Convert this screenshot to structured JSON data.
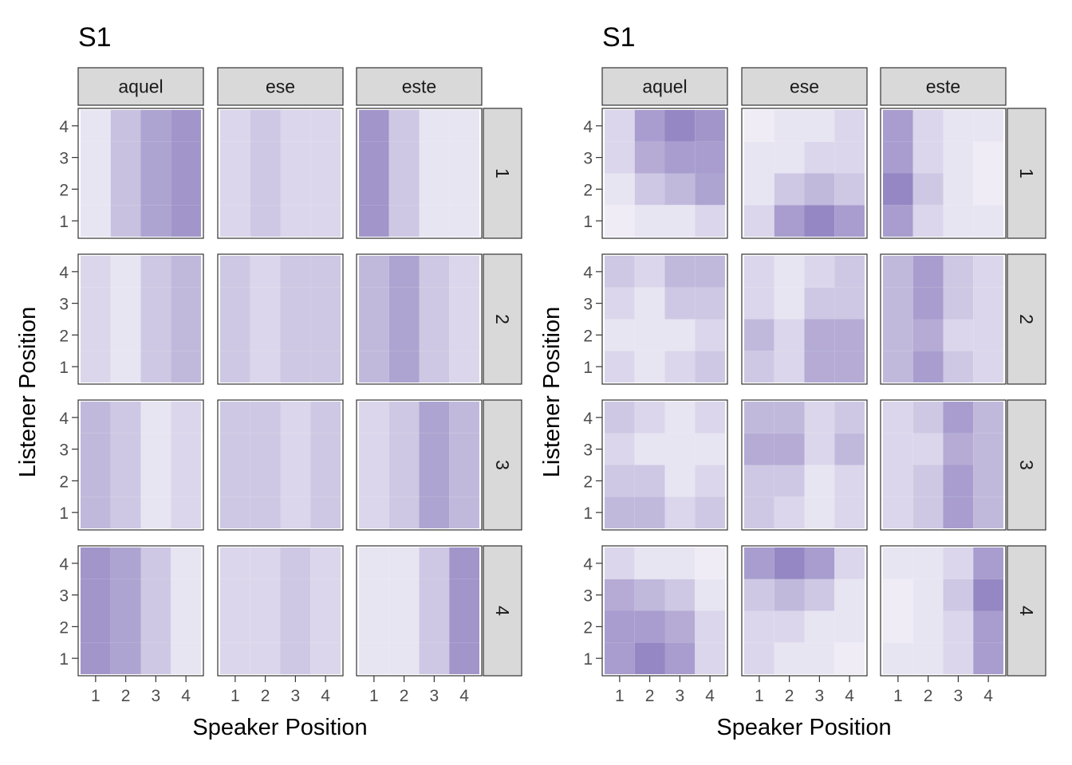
{
  "chart_data": [
    {
      "type": "heatmap",
      "title": "S1",
      "xlabel": "Speaker Position",
      "ylabel": "Listener Position",
      "x": [
        1,
        2,
        3,
        4
      ],
      "y": [
        1,
        2,
        3,
        4
      ],
      "facet_cols": [
        "aquel",
        "ese",
        "este"
      ],
      "facet_rows": [
        "1",
        "2",
        "3",
        "4"
      ],
      "color_low": "#f5f3fa",
      "color_high": "#7463b0",
      "value_range": [
        0,
        1
      ],
      "values_note": "intensity 0-1",
      "panels": {
        "1": {
          "aquel": [
            [
              0.1,
              0.35,
              0.55,
              0.65
            ],
            [
              0.1,
              0.35,
              0.55,
              0.65
            ],
            [
              0.1,
              0.35,
              0.55,
              0.65
            ],
            [
              0.1,
              0.35,
              0.55,
              0.65
            ]
          ],
          "ese": [
            [
              0.2,
              0.3,
              0.2,
              0.2
            ],
            [
              0.2,
              0.3,
              0.2,
              0.2
            ],
            [
              0.2,
              0.3,
              0.2,
              0.2
            ],
            [
              0.2,
              0.3,
              0.2,
              0.2
            ]
          ],
          "este": [
            [
              0.65,
              0.3,
              0.1,
              0.1
            ],
            [
              0.65,
              0.3,
              0.1,
              0.1
            ],
            [
              0.65,
              0.3,
              0.1,
              0.1
            ],
            [
              0.65,
              0.3,
              0.1,
              0.1
            ]
          ]
        },
        "2": {
          "aquel": [
            [
              0.2,
              0.1,
              0.3,
              0.4
            ],
            [
              0.2,
              0.1,
              0.3,
              0.4
            ],
            [
              0.2,
              0.1,
              0.3,
              0.4
            ],
            [
              0.2,
              0.1,
              0.3,
              0.4
            ]
          ],
          "ese": [
            [
              0.3,
              0.2,
              0.3,
              0.3
            ],
            [
              0.3,
              0.2,
              0.3,
              0.3
            ],
            [
              0.3,
              0.2,
              0.3,
              0.3
            ],
            [
              0.3,
              0.2,
              0.3,
              0.3
            ]
          ],
          "este": [
            [
              0.4,
              0.55,
              0.3,
              0.2
            ],
            [
              0.4,
              0.55,
              0.3,
              0.2
            ],
            [
              0.4,
              0.55,
              0.3,
              0.2
            ],
            [
              0.4,
              0.55,
              0.3,
              0.2
            ]
          ]
        },
        "3": {
          "aquel": [
            [
              0.4,
              0.3,
              0.1,
              0.2
            ],
            [
              0.4,
              0.3,
              0.1,
              0.2
            ],
            [
              0.4,
              0.3,
              0.1,
              0.2
            ],
            [
              0.4,
              0.3,
              0.1,
              0.2
            ]
          ],
          "ese": [
            [
              0.3,
              0.3,
              0.2,
              0.3
            ],
            [
              0.3,
              0.3,
              0.2,
              0.3
            ],
            [
              0.3,
              0.3,
              0.2,
              0.3
            ],
            [
              0.3,
              0.3,
              0.2,
              0.3
            ]
          ],
          "este": [
            [
              0.2,
              0.3,
              0.55,
              0.4
            ],
            [
              0.2,
              0.3,
              0.55,
              0.4
            ],
            [
              0.2,
              0.3,
              0.55,
              0.4
            ],
            [
              0.2,
              0.3,
              0.55,
              0.4
            ]
          ]
        },
        "4": {
          "aquel": [
            [
              0.65,
              0.55,
              0.3,
              0.1
            ],
            [
              0.65,
              0.55,
              0.3,
              0.1
            ],
            [
              0.65,
              0.55,
              0.3,
              0.1
            ],
            [
              0.65,
              0.55,
              0.3,
              0.1
            ]
          ],
          "ese": [
            [
              0.2,
              0.2,
              0.3,
              0.2
            ],
            [
              0.2,
              0.2,
              0.3,
              0.2
            ],
            [
              0.2,
              0.2,
              0.3,
              0.2
            ],
            [
              0.2,
              0.2,
              0.3,
              0.2
            ]
          ],
          "este": [
            [
              0.1,
              0.1,
              0.3,
              0.65
            ],
            [
              0.1,
              0.1,
              0.3,
              0.65
            ],
            [
              0.1,
              0.1,
              0.3,
              0.65
            ],
            [
              0.1,
              0.1,
              0.3,
              0.65
            ]
          ]
        }
      }
    },
    {
      "type": "heatmap",
      "title": "S1",
      "xlabel": "Speaker Position",
      "ylabel": "Listener Position",
      "x": [
        1,
        2,
        3,
        4
      ],
      "y": [
        1,
        2,
        3,
        4
      ],
      "facet_cols": [
        "aquel",
        "ese",
        "este"
      ],
      "facet_rows": [
        "1",
        "2",
        "3",
        "4"
      ],
      "color_low": "#f5f3fa",
      "color_high": "#7463b0",
      "value_range": [
        0,
        1
      ],
      "values_note": "intensity 0-1",
      "panels": {
        "1": {
          "aquel": [
            [
              0.05,
              0.1,
              0.1,
              0.2
            ],
            [
              0.1,
              0.3,
              0.4,
              0.55
            ],
            [
              0.2,
              0.5,
              0.6,
              0.6
            ],
            [
              0.2,
              0.6,
              0.75,
              0.65
            ]
          ],
          "ese": [
            [
              0.2,
              0.6,
              0.75,
              0.6
            ],
            [
              0.1,
              0.3,
              0.4,
              0.3
            ],
            [
              0.1,
              0.1,
              0.2,
              0.2
            ],
            [
              0.05,
              0.1,
              0.1,
              0.2
            ]
          ],
          "este": [
            [
              0.6,
              0.2,
              0.1,
              0.1
            ],
            [
              0.75,
              0.3,
              0.1,
              0.05
            ],
            [
              0.6,
              0.2,
              0.1,
              0.05
            ],
            [
              0.6,
              0.2,
              0.1,
              0.1
            ]
          ]
        },
        "2": {
          "aquel": [
            [
              0.2,
              0.1,
              0.2,
              0.3
            ],
            [
              0.1,
              0.1,
              0.1,
              0.2
            ],
            [
              0.2,
              0.1,
              0.3,
              0.3
            ],
            [
              0.3,
              0.2,
              0.4,
              0.4
            ]
          ],
          "ese": [
            [
              0.3,
              0.2,
              0.5,
              0.5
            ],
            [
              0.4,
              0.2,
              0.5,
              0.5
            ],
            [
              0.2,
              0.1,
              0.3,
              0.3
            ],
            [
              0.2,
              0.1,
              0.2,
              0.3
            ]
          ],
          "este": [
            [
              0.4,
              0.6,
              0.3,
              0.2
            ],
            [
              0.4,
              0.5,
              0.2,
              0.2
            ],
            [
              0.4,
              0.6,
              0.3,
              0.2
            ],
            [
              0.4,
              0.6,
              0.3,
              0.2
            ]
          ]
        },
        "3": {
          "aquel": [
            [
              0.4,
              0.4,
              0.2,
              0.3
            ],
            [
              0.3,
              0.3,
              0.1,
              0.2
            ],
            [
              0.2,
              0.1,
              0.1,
              0.1
            ],
            [
              0.3,
              0.2,
              0.1,
              0.2
            ]
          ],
          "ese": [
            [
              0.3,
              0.2,
              0.1,
              0.2
            ],
            [
              0.3,
              0.3,
              0.1,
              0.2
            ],
            [
              0.5,
              0.5,
              0.2,
              0.4
            ],
            [
              0.4,
              0.4,
              0.2,
              0.3
            ]
          ],
          "este": [
            [
              0.2,
              0.3,
              0.6,
              0.4
            ],
            [
              0.2,
              0.3,
              0.6,
              0.4
            ],
            [
              0.2,
              0.2,
              0.5,
              0.4
            ],
            [
              0.2,
              0.3,
              0.6,
              0.4
            ]
          ]
        },
        "4": {
          "aquel": [
            [
              0.6,
              0.75,
              0.6,
              0.2
            ],
            [
              0.6,
              0.6,
              0.5,
              0.2
            ],
            [
              0.5,
              0.4,
              0.3,
              0.1
            ],
            [
              0.2,
              0.1,
              0.1,
              0.05
            ]
          ],
          "ese": [
            [
              0.2,
              0.1,
              0.1,
              0.05
            ],
            [
              0.2,
              0.2,
              0.1,
              0.1
            ],
            [
              0.3,
              0.4,
              0.3,
              0.1
            ],
            [
              0.6,
              0.75,
              0.6,
              0.2
            ]
          ],
          "este": [
            [
              0.1,
              0.1,
              0.2,
              0.6
            ],
            [
              0.05,
              0.1,
              0.2,
              0.6
            ],
            [
              0.05,
              0.1,
              0.3,
              0.75
            ],
            [
              0.1,
              0.1,
              0.2,
              0.6
            ]
          ]
        }
      }
    }
  ]
}
